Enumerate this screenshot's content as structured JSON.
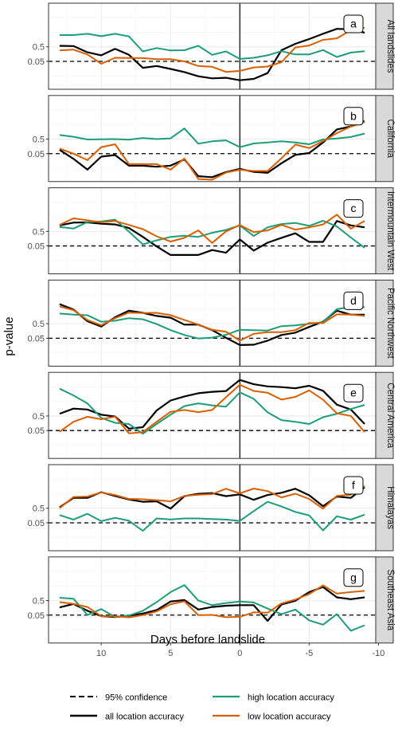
{
  "figure": {
    "ylabel": "p-value",
    "xlabel": "Days before landslide",
    "x_ticks": [
      10,
      5,
      0,
      -5,
      -10
    ],
    "x_tick_labels": [
      "10",
      "5",
      "0",
      "-5",
      "-10"
    ],
    "y_tick_labels": [
      "0.5",
      "0.05"
    ],
    "reference_line": 0.05
  },
  "legend": {
    "confidence_label": "95% confidence",
    "all_label": "all location accuracy",
    "high_label": "high location accuracy",
    "low_label": "low location accuracy"
  },
  "colors": {
    "all": "#000000",
    "high": "#1b9e77",
    "low": "#d95f02",
    "strip_bg": "#d9d9d9",
    "grid_major": "#ebebeb",
    "grid_minor": "#f5f5f5"
  },
  "chart_data": {
    "type": "line",
    "x": [
      13,
      12,
      11,
      10,
      9,
      8,
      7,
      6,
      5,
      4,
      3,
      2,
      1,
      0,
      -1,
      -2,
      -3,
      -4,
      -5,
      -6,
      -7,
      -8,
      -9
    ],
    "xlim": [
      13.8,
      -9.8
    ],
    "x_reversed": true,
    "y_scale": "log",
    "panels": [
      {
        "letter": "a",
        "region": "All landslides",
        "series": [
          {
            "name": "all location accuracy",
            "key": "all",
            "values": [
              0.58,
              0.56,
              0.21,
              0.13,
              0.36,
              0.14,
              0.018,
              0.024,
              0.015,
              0.0092,
              0.0047,
              0.0034,
              0.0037,
              0.0025,
              0.0031,
              0.0078,
              0.29,
              0.8,
              1.7,
              3.9,
              8.6,
              8.0,
              4.7
            ]
          },
          {
            "name": "high location accuracy",
            "key": "high",
            "values": [
              3.2,
              3.2,
              3.9,
              2.7,
              3.9,
              2.6,
              0.24,
              0.41,
              0.28,
              0.29,
              0.59,
              0.14,
              0.24,
              0.074,
              0.088,
              0.13,
              0.25,
              0.15,
              0.15,
              0.3,
              0.1,
              0.2,
              0.25
            ]
          },
          {
            "name": "low location accuracy",
            "key": "low",
            "values": [
              0.28,
              0.32,
              0.15,
              0.034,
              0.088,
              0.085,
              0.084,
              0.07,
              0.07,
              0.05,
              0.024,
              0.021,
              0.0094,
              0.011,
              0.019,
              0.022,
              0.044,
              0.45,
              0.61,
              1.5,
              1.9,
              6.9,
              10.2
            ]
          }
        ]
      },
      {
        "letter": "b",
        "region": "California",
        "series": [
          {
            "name": "all location accuracy",
            "key": "all",
            "values": [
              0.09,
              0.022,
              0.004,
              0.031,
              0.04,
              0.0074,
              0.0074,
              0.0063,
              0.0075,
              0.02,
              0.0014,
              0.0012,
              0.0027,
              0.0044,
              0.0028,
              0.0024,
              0.011,
              0.041,
              0.055,
              0.29,
              2.3,
              3.7,
              8.6
            ]
          },
          {
            "name": "high location accuracy",
            "key": "high",
            "values": [
              0.95,
              0.72,
              0.47,
              0.48,
              0.5,
              0.46,
              0.6,
              0.5,
              0.56,
              2.7,
              0.24,
              0.35,
              0.41,
              0.14,
              0.25,
              0.29,
              0.35,
              0.29,
              0.22,
              0.47,
              0.55,
              0.7,
              1.2
            ]
          },
          {
            "name": "low location accuracy",
            "key": "low",
            "values": [
              0.11,
              0.05,
              0.018,
              0.14,
              0.22,
              0.0095,
              0.0095,
              0.0095,
              0.004,
              0.023,
              0.0009,
              0.0008,
              0.0025,
              0.0039,
              0.0032,
              0.0032,
              0.024,
              0.21,
              0.12,
              0.36,
              1.3,
              3.6,
              7.6
            ]
          }
        ]
      },
      {
        "letter": "c",
        "region": "Intermountain West",
        "series": [
          {
            "name": "all location accuracy",
            "key": "all",
            "values": [
              1.3,
              2.0,
              2.1,
              1.7,
              1.5,
              0.85,
              0.21,
              0.046,
              0.012,
              0.012,
              0.012,
              0.026,
              0.017,
              0.14,
              0.024,
              0.084,
              0.18,
              0.37,
              0.095,
              0.095,
              2.6,
              1.3,
              0.95
            ]
          },
          {
            "name": "high location accuracy",
            "key": "high",
            "values": [
              1.0,
              0.78,
              2.2,
              2.4,
              3.2,
              0.48,
              0.064,
              0.12,
              0.21,
              0.25,
              0.21,
              0.4,
              0.63,
              1.3,
              0.24,
              0.95,
              1.6,
              1.9,
              1.2,
              2.7,
              1.1,
              0.19,
              0.037
            ]
          },
          {
            "name": "low location accuracy",
            "key": "low",
            "values": [
              1.4,
              3.9,
              2.9,
              2.1,
              2.6,
              1.4,
              0.71,
              0.23,
              0.1,
              0.18,
              0.58,
              0.08,
              0.5,
              1.4,
              0.44,
              0.58,
              1.4,
              0.66,
              0.94,
              1.5,
              7.1,
              0.76,
              2.6
            ]
          }
        ]
      },
      {
        "letter": "d",
        "region": "Pacific Northwest",
        "series": [
          {
            "name": "all location accuracy",
            "key": "all",
            "values": [
              11.1,
              4.7,
              0.74,
              0.32,
              1.4,
              3.9,
              2.8,
              1.7,
              1.3,
              0.43,
              0.43,
              0.18,
              0.054,
              0.017,
              0.018,
              0.034,
              0.084,
              0.12,
              0.3,
              0.69,
              3.9,
              2.1,
              2.1
            ]
          },
          {
            "name": "high location accuracy",
            "key": "high",
            "values": [
              2.5,
              2.1,
              1.9,
              0.68,
              0.8,
              1.2,
              1.0,
              0.47,
              0.18,
              0.084,
              0.048,
              0.055,
              0.086,
              0.19,
              0.18,
              0.17,
              0.34,
              0.38,
              0.49,
              0.64,
              5.0,
              7.1,
              6.8
            ]
          },
          {
            "name": "low location accuracy",
            "key": "low",
            "values": [
              7.7,
              4.3,
              0.88,
              0.39,
              1.2,
              2.9,
              2.7,
              2.8,
              1.9,
              0.91,
              0.43,
              0.19,
              0.14,
              0.034,
              0.1,
              0.13,
              0.13,
              0.18,
              0.56,
              0.55,
              2.2,
              2.1,
              1.7
            ]
          }
        ]
      },
      {
        "letter": "e",
        "region": "Central America",
        "series": [
          {
            "name": "all location accuracy",
            "key": "all",
            "values": [
              0.71,
              1.6,
              1.4,
              0.61,
              0.46,
              0.067,
              0.085,
              1.2,
              5.8,
              11.1,
              18.3,
              23.0,
              26.2,
              150,
              76.5,
              54.0,
              48.1,
              40.0,
              59.6,
              27.0,
              3.0,
              1.4,
              0.14
            ]
          },
          {
            "name": "high location accuracy",
            "key": "high",
            "values": [
              37.5,
              13.1,
              3.7,
              0.37,
              0.17,
              0.14,
              0.03,
              0.14,
              0.61,
              2.4,
              3.7,
              2.7,
              2.2,
              21.1,
              7.6,
              0.89,
              0.26,
              0.2,
              0.14,
              0.41,
              0.71,
              1.5,
              2.9
            ]
          },
          {
            "name": "low location accuracy",
            "key": "low",
            "values": [
              0.041,
              0.2,
              0.44,
              0.3,
              0.45,
              0.032,
              0.038,
              0.2,
              0.97,
              1.3,
              0.92,
              1.3,
              9.8,
              69.6,
              26.5,
              19.8,
              6.7,
              10.3,
              29.0,
              6.7,
              0.76,
              0.51,
              0.039
            ]
          }
        ]
      },
      {
        "letter": "f",
        "region": "Himalayas",
        "series": [
          {
            "name": "all location accuracy",
            "key": "all",
            "values": [
              0.58,
              2.6,
              2.6,
              6.4,
              3.5,
              2.0,
              1.4,
              1.5,
              0.47,
              3.4,
              4.9,
              5.5,
              3.4,
              4.5,
              1.9,
              4.1,
              5.8,
              11.1,
              3.9,
              0.7,
              3.2,
              2.6,
              13.8
            ]
          },
          {
            "name": "high location accuracy",
            "key": "high",
            "values": [
              0.17,
              0.084,
              0.21,
              0.065,
              0.11,
              0.069,
              0.014,
              0.1,
              0.085,
              0.1,
              0.1,
              0.09,
              0.083,
              0.067,
              0.32,
              1.4,
              0.67,
              0.28,
              0.16,
              0.015,
              0.14,
              0.082,
              0.18
            ]
          },
          {
            "name": "low location accuracy",
            "key": "low",
            "values": [
              0.51,
              3.0,
              3.2,
              6.2,
              4.1,
              2.2,
              2.1,
              1.8,
              1.5,
              3.5,
              4.3,
              4.7,
              11.0,
              5.3,
              11.3,
              7.6,
              2.8,
              5.0,
              2.2,
              0.47,
              3.6,
              4.3,
              16.7
            ]
          }
        ]
      },
      {
        "letter": "g",
        "region": "Southeast Asia",
        "series": [
          {
            "name": "all location accuracy",
            "key": "all",
            "values": [
              0.17,
              0.29,
              0.1,
              0.043,
              0.037,
              0.045,
              0.064,
              0.11,
              0.43,
              0.54,
              0.12,
              0.18,
              0.22,
              0.24,
              0.24,
              0.02,
              0.27,
              0.48,
              1.9,
              4.3,
              0.83,
              0.62,
              0.83
            ]
          },
          {
            "name": "high location accuracy",
            "key": "high",
            "values": [
              0.78,
              0.67,
              0.051,
              0.13,
              0.037,
              0.047,
              0.098,
              0.39,
              1.9,
              5.8,
              0.5,
              0.24,
              0.34,
              0.43,
              0.37,
              0.14,
              0.058,
              0.12,
              0.022,
              0.011,
              0.058,
              0.0042,
              0.01
            ]
          },
          {
            "name": "low location accuracy",
            "key": "low",
            "values": [
              0.39,
              0.3,
              0.18,
              0.042,
              0.041,
              0.035,
              0.05,
              0.09,
              0.28,
              0.44,
              0.05,
              0.052,
              0.036,
              0.038,
              0.077,
              0.073,
              0.32,
              0.58,
              1.4,
              5.5,
              1.5,
              1.9,
              2.3
            ]
          }
        ]
      }
    ]
  }
}
